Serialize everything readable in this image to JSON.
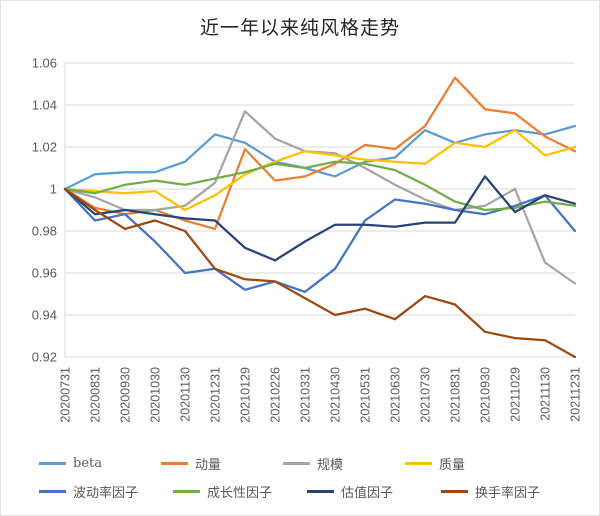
{
  "chart_data": {
    "type": "line",
    "title": "近一年以来纯风格走势",
    "xlabel": "",
    "ylabel": "",
    "ylim": [
      0.92,
      1.06
    ],
    "yticks": [
      0.92,
      0.94,
      0.96,
      0.98,
      1,
      1.02,
      1.04,
      1.06
    ],
    "ytick_labels": [
      "0.92",
      "0.94",
      "0.96",
      "0.98",
      "1",
      "1.02",
      "1.04",
      "1.06"
    ],
    "grid": "horizontal",
    "legend_position": "bottom",
    "x": [
      "20200731",
      "20200831",
      "20200930",
      "20201030",
      "20201130",
      "20201231",
      "20210129",
      "20210226",
      "20210331",
      "20210430",
      "20210531",
      "20210630",
      "20210730",
      "20210831",
      "20210930",
      "20211029",
      "20211130",
      "20211231"
    ],
    "series": [
      {
        "name": "beta",
        "color": "#5B9BD5",
        "values": [
          1,
          1.007,
          1.008,
          1.008,
          1.013,
          1.026,
          1.022,
          1.013,
          1.01,
          1.006,
          1.013,
          1.015,
          1.028,
          1.022,
          1.026,
          1.028,
          1.026,
          1.03
        ]
      },
      {
        "name": "动量",
        "color": "#ED7D31",
        "values": [
          1,
          0.991,
          0.988,
          0.99,
          0.985,
          0.981,
          1.019,
          1.004,
          1.006,
          1.012,
          1.021,
          1.019,
          1.03,
          1.053,
          1.038,
          1.036,
          1.025,
          1.018
        ]
      },
      {
        "name": "规模",
        "color": "#A5A5A5",
        "values": [
          1,
          0.996,
          0.99,
          0.99,
          0.992,
          1.003,
          1.037,
          1.024,
          1.018,
          1.017,
          1.01,
          1.002,
          0.995,
          0.99,
          0.992,
          1,
          0.965,
          0.955
        ]
      },
      {
        "name": "质量",
        "color": "#FFC000",
        "values": [
          1,
          0.999,
          0.998,
          0.999,
          0.99,
          0.997,
          1.007,
          1.013,
          1.018,
          1.016,
          1.014,
          1.013,
          1.012,
          1.022,
          1.02,
          1.028,
          1.016,
          1.02
        ]
      },
      {
        "name": "波动率因子",
        "color": "#4472C4",
        "values": [
          1,
          0.985,
          0.988,
          0.975,
          0.96,
          0.962,
          0.952,
          0.956,
          0.951,
          0.962,
          0.985,
          0.995,
          0.993,
          0.99,
          0.988,
          0.992,
          0.997,
          0.98
        ]
      },
      {
        "name": "成长性因子",
        "color": "#70AD47",
        "values": [
          1,
          0.998,
          1.002,
          1.004,
          1.002,
          1.005,
          1.008,
          1.012,
          1.01,
          1.013,
          1.012,
          1.009,
          1.002,
          0.994,
          0.99,
          0.991,
          0.994,
          0.992
        ]
      },
      {
        "name": "估值因子",
        "color": "#264478",
        "values": [
          1,
          0.988,
          0.99,
          0.988,
          0.986,
          0.985,
          0.972,
          0.966,
          0.975,
          0.983,
          0.983,
          0.982,
          0.984,
          0.984,
          1.006,
          0.989,
          0.997,
          0.993
        ]
      },
      {
        "name": "换手率因子",
        "color": "#9E480E",
        "values": [
          1,
          0.99,
          0.981,
          0.985,
          0.98,
          0.962,
          0.957,
          0.956,
          0.948,
          0.94,
          0.943,
          0.938,
          0.949,
          0.945,
          0.932,
          0.929,
          0.928,
          0.92
        ]
      }
    ],
    "legend_rows": [
      [
        0,
        1,
        2,
        3
      ],
      [
        4,
        5,
        6,
        7
      ]
    ],
    "colors": {
      "gridline": "#D9D9D9",
      "axis": "#D9D9D9",
      "tick_text": "#595959",
      "title_text": "#262626"
    }
  }
}
